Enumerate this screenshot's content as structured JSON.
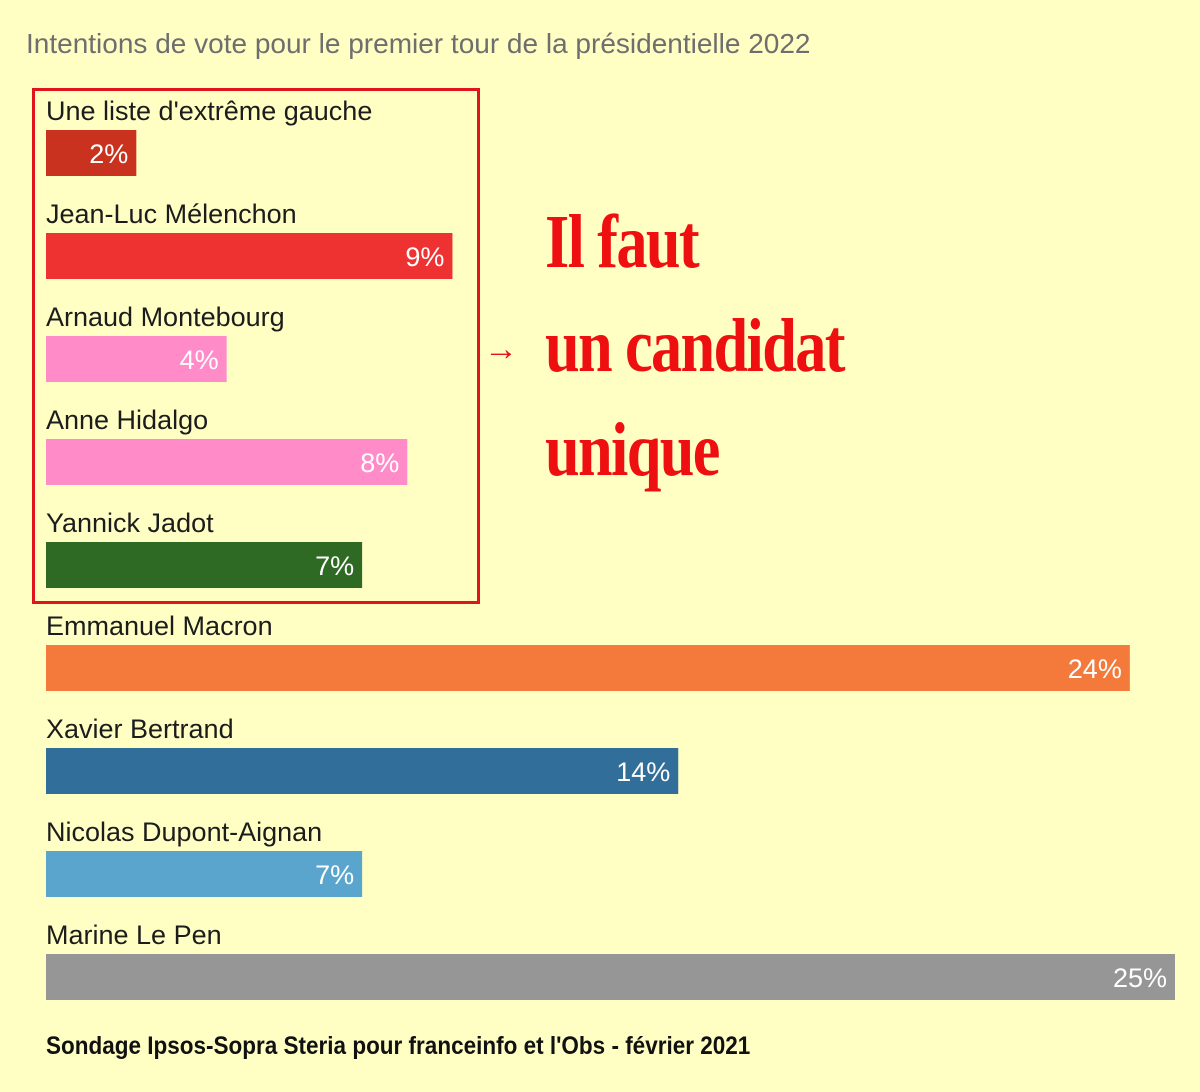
{
  "chart_data": {
    "type": "bar",
    "orientation": "horizontal",
    "title": "Intentions de vote pour le premier tour de la présidentielle 2022",
    "categories": [
      "Une liste d'extrême gauche",
      "Jean-Luc Mélenchon",
      "Arnaud Montebourg",
      "Anne Hidalgo",
      "Yannick Jadot",
      "Emmanuel Macron",
      "Xavier Bertrand",
      "Nicolas Dupont-Aignan",
      "Marine Le Pen"
    ],
    "values": [
      2,
      9,
      4,
      8,
      7,
      24,
      14,
      7,
      25
    ],
    "value_labels": [
      "2%",
      "9%",
      "4%",
      "8%",
      "7%",
      "24%",
      "14%",
      "7%",
      "25%"
    ],
    "colors": [
      "#c8321e",
      "#ee3232",
      "#ff8cc8",
      "#ff8cc8",
      "#2e6a24",
      "#f47a3c",
      "#326e9a",
      "#5aa5ce",
      "#969696"
    ],
    "xlim": [
      0,
      25
    ],
    "unit": "%",
    "grid": false
  },
  "annotation": {
    "arrow": "→",
    "lines": [
      "Il faut",
      "un candidat",
      "unique"
    ]
  },
  "source": "Sondage Ipsos-Sopra Steria pour franceinfo et l'Obs - février 2021"
}
